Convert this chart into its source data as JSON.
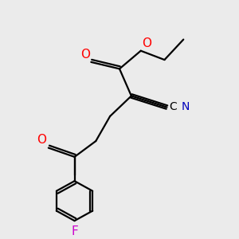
{
  "bg_color": "#ebebeb",
  "bond_color": "#000000",
  "oxygen_color": "#ff0000",
  "nitrogen_color": "#0000bb",
  "fluorine_color": "#cc00cc",
  "line_width": 1.6,
  "fig_size": [
    3.0,
    3.0
  ],
  "dpi": 100,
  "atoms": {
    "O_carbonyl_ester": {
      "label": "O",
      "color": "#ff0000"
    },
    "O_ester_link": {
      "label": "O",
      "color": "#ff0000"
    },
    "O_ketone": {
      "label": "O",
      "color": "#ff0000"
    },
    "C_label": {
      "label": "C",
      "color": "#000000"
    },
    "N_label": {
      "label": "N",
      "color": "#0000bb"
    },
    "F_label": {
      "label": "F",
      "color": "#cc00cc"
    }
  }
}
